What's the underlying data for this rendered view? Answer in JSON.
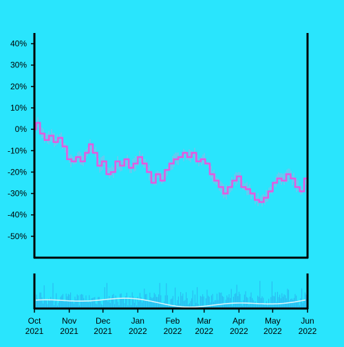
{
  "chart_data": {
    "type": "line",
    "title": "",
    "xlabel": "",
    "ylabel": "",
    "background": "#29e5fd",
    "series_color": "#e05ce0",
    "range_color": "#8fb8e8",
    "volume_color": "#2ab9f0",
    "volume_line_color": "#d8f4f8",
    "axis_color": "#000000",
    "ylim": [
      -60,
      45
    ],
    "y_ticks": [
      40,
      30,
      20,
      10,
      0,
      -10,
      -20,
      -30,
      -40,
      -50
    ],
    "y_tick_labels": [
      "40%",
      "30%",
      "20%",
      "10%",
      "0%",
      "-10%",
      "-20%",
      "-30%",
      "-40%",
      "-50%"
    ],
    "x_range": [
      "2021-10-01",
      "2022-06-01"
    ],
    "x_ticks": [
      {
        "date": "2021-10-01",
        "month": "Oct",
        "year": "2021"
      },
      {
        "date": "2021-11-01",
        "month": "Nov",
        "year": "2021"
      },
      {
        "date": "2021-12-01",
        "month": "Dec",
        "year": "2021"
      },
      {
        "date": "2022-01-01",
        "month": "Jan",
        "year": "2022"
      },
      {
        "date": "2022-02-01",
        "month": "Feb",
        "year": "2022"
      },
      {
        "date": "2022-03-01",
        "month": "Mar",
        "year": "2022"
      },
      {
        "date": "2022-04-01",
        "month": "Apr",
        "year": "2022"
      },
      {
        "date": "2022-05-01",
        "month": "May",
        "year": "2022"
      },
      {
        "date": "2022-06-01",
        "month": "Jun",
        "year": "2022"
      }
    ],
    "series": [
      {
        "points": [
          [
            "2021-10-01",
            0
          ],
          [
            "2021-10-04",
            3
          ],
          [
            "2021-10-08",
            -2
          ],
          [
            "2021-10-12",
            -5
          ],
          [
            "2021-10-16",
            -3
          ],
          [
            "2021-10-20",
            -6
          ],
          [
            "2021-10-24",
            -4
          ],
          [
            "2021-10-28",
            -8
          ],
          [
            "2021-11-01",
            -14
          ],
          [
            "2021-11-05",
            -15
          ],
          [
            "2021-11-09",
            -13
          ],
          [
            "2021-11-13",
            -15
          ],
          [
            "2021-11-17",
            -11
          ],
          [
            "2021-11-20",
            -7
          ],
          [
            "2021-11-24",
            -11
          ],
          [
            "2021-11-28",
            -17
          ],
          [
            "2021-12-02",
            -15
          ],
          [
            "2021-12-06",
            -21
          ],
          [
            "2021-12-10",
            -20
          ],
          [
            "2021-12-14",
            -15
          ],
          [
            "2021-12-18",
            -17
          ],
          [
            "2021-12-22",
            -14
          ],
          [
            "2021-12-26",
            -18
          ],
          [
            "2021-12-30",
            -16
          ],
          [
            "2022-01-03",
            -13
          ],
          [
            "2022-01-07",
            -16
          ],
          [
            "2022-01-11",
            -20
          ],
          [
            "2022-01-15",
            -25
          ],
          [
            "2022-01-19",
            -21
          ],
          [
            "2022-01-23",
            -24
          ],
          [
            "2022-01-27",
            -19
          ],
          [
            "2022-01-31",
            -16
          ],
          [
            "2022-02-04",
            -14
          ],
          [
            "2022-02-08",
            -13
          ],
          [
            "2022-02-12",
            -11
          ],
          [
            "2022-02-16",
            -13
          ],
          [
            "2022-02-20",
            -11
          ],
          [
            "2022-02-24",
            -15
          ],
          [
            "2022-02-28",
            -14
          ],
          [
            "2022-03-04",
            -16
          ],
          [
            "2022-03-08",
            -21
          ],
          [
            "2022-03-12",
            -24
          ],
          [
            "2022-03-16",
            -27
          ],
          [
            "2022-03-20",
            -30
          ],
          [
            "2022-03-24",
            -27
          ],
          [
            "2022-03-28",
            -24
          ],
          [
            "2022-04-01",
            -22
          ],
          [
            "2022-04-05",
            -27
          ],
          [
            "2022-04-09",
            -28
          ],
          [
            "2022-04-13",
            -30
          ],
          [
            "2022-04-17",
            -33
          ],
          [
            "2022-04-21",
            -34
          ],
          [
            "2022-04-25",
            -32
          ],
          [
            "2022-04-29",
            -29
          ],
          [
            "2022-05-03",
            -25
          ],
          [
            "2022-05-07",
            -23
          ],
          [
            "2022-05-11",
            -24
          ],
          [
            "2022-05-15",
            -21
          ],
          [
            "2022-05-19",
            -23
          ],
          [
            "2022-05-23",
            -27
          ],
          [
            "2022-05-27",
            -29
          ],
          [
            "2022-05-31",
            -23
          ]
        ]
      }
    ]
  }
}
